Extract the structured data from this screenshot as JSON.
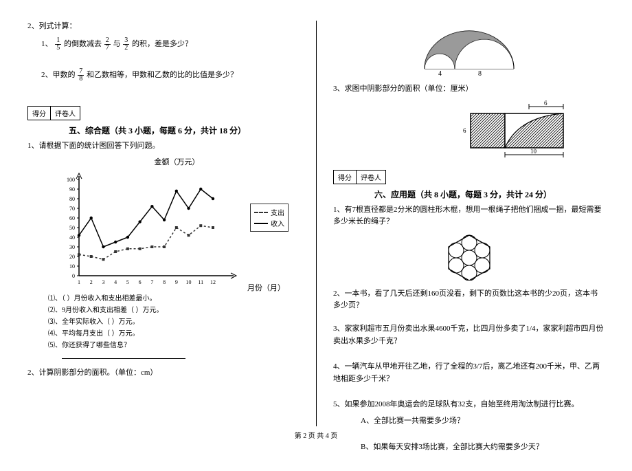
{
  "left": {
    "q2_title": "2、列式计算：",
    "q2_1_pre": "1、",
    "q2_1_mid1": "的倒数减去",
    "q2_1_mid2": "与",
    "q2_1_post": "的积，差是多少？",
    "frac_1_5": {
      "n": "1",
      "d": "5"
    },
    "frac_2_7": {
      "n": "2",
      "d": "7"
    },
    "frac_3_2": {
      "n": "3",
      "d": "2"
    },
    "q2_2_pre": "2、甲数的",
    "frac_7_8": {
      "n": "7",
      "d": "8"
    },
    "q2_2_post": "和乙数相等，甲数和乙数的比的比值是多少？",
    "score_labels": {
      "a": "得分",
      "b": "评卷人"
    },
    "section5_title": "五、综合题（共 3 小题，每题 6 分，共计 18 分）",
    "q5_1": "1、请根据下面的统计图回答下列问题。",
    "chart": {
      "title": "金额（万元）",
      "x_label": "月份（月）",
      "y_ticks": [
        0,
        10,
        20,
        30,
        40,
        50,
        60,
        70,
        80,
        90,
        100
      ],
      "x_ticks": [
        1,
        2,
        3,
        4,
        5,
        6,
        7,
        8,
        9,
        10,
        11,
        12
      ],
      "series": [
        {
          "name": "收入",
          "style": "solid",
          "data": [
            42,
            60,
            30,
            35,
            40,
            56,
            72,
            58,
            88,
            70,
            90,
            80
          ]
        },
        {
          "name": "支出",
          "style": "dash",
          "data": [
            22,
            20,
            17,
            25,
            28,
            28,
            30,
            30,
            50,
            42,
            52,
            50
          ]
        }
      ],
      "legend": {
        "expenditure": "支出",
        "income": "收入"
      }
    },
    "subq1": "⑴、（  ）月份收入和支出相差最小。",
    "subq2": "⑵、9月份收入和支出相差（  ）万元。",
    "subq3": "⑶、全年实际收入（  ）万元。",
    "subq4": "⑷、平均每月支出（  ）万元。",
    "subq5": "⑸、你还获得了哪些信息？",
    "q5_2": "2、计算阴影部分的面积。（单位：cm）"
  },
  "right": {
    "semicircle": {
      "label_4": "4",
      "label_8": "8"
    },
    "q3": "3、求图中阴影部分的面积（单位：厘米）",
    "rect_diagram": {
      "h": "6",
      "w1": "6",
      "w2": "10"
    },
    "score_labels": {
      "a": "得分",
      "b": "评卷人"
    },
    "section6_title": "六、应用题（共 8 小题，每题 3 分，共计 24 分）",
    "q6_1": "1、有7根直径都是2分米的圆柱形木棍，想用一根绳子把他们捆成一捆，最短需要多少米长的绳子？",
    "q6_2": "2、一本书，看了几天后还剩160页没看，剩下的页数比这本书的少20页，这本书多少页？",
    "q6_3": "3、家家利超市五月份卖出水果4600千克，比四月份多卖了1/4，家家利超市四月份卖出水果多少千克？",
    "q6_4": "4、一辆汽车从甲地开往乙地，行了全程的3/7后，离乙地还有200千米，甲、乙两地相距多少千米？",
    "q6_5": "5、如果参加2008年奥运会的足球队有32支，自始至终用淘汰制进行比赛。",
    "q6_5a": "A、全部比赛一共需要多少场？",
    "q6_5b": "B、如果每天安排3场比赛，全部比赛大约需要多少天？"
  },
  "footer": "第 2 页 共 4 页"
}
